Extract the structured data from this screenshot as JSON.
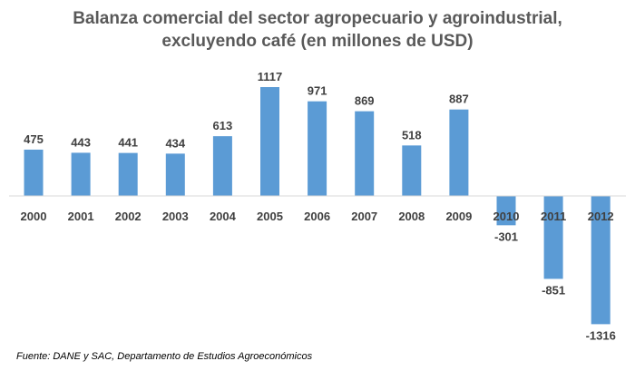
{
  "chart_data": {
    "type": "bar",
    "title_line1": "Balanza comercial del sector agropecuario y agroindustrial,",
    "title_line2": "excluyendo café (en millones de USD)",
    "categories": [
      "2000",
      "2001",
      "2002",
      "2003",
      "2004",
      "2005",
      "2006",
      "2007",
      "2008",
      "2009",
      "2010",
      "2011",
      "2012"
    ],
    "values": [
      475,
      443,
      441,
      434,
      613,
      1117,
      971,
      869,
      518,
      887,
      -301,
      -851,
      -1316
    ],
    "xlabel": "",
    "ylabel": "",
    "grid": false,
    "legend": "none",
    "bar_color": "#5B9BD5",
    "label_color": "#404040"
  },
  "source": "Fuente: DANE y SAC, Departamento de Estudios Agroeconómicos"
}
